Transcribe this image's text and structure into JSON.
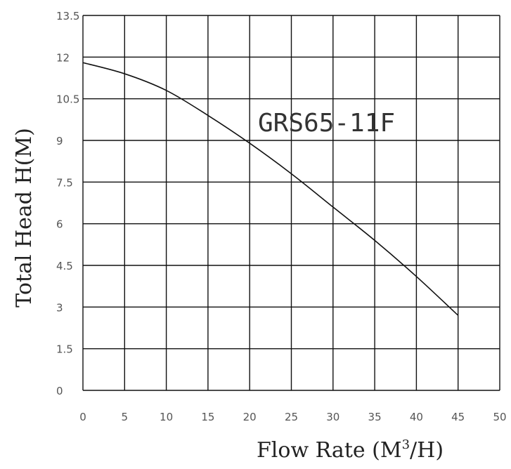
{
  "chart_data": {
    "type": "line",
    "xlabel": {
      "main": "Flow Rate (M",
      "sup": "3",
      "tail": "/H)"
    },
    "ylabel": "Total Head H(M)",
    "xlim": [
      0,
      50
    ],
    "ylim": [
      0,
      13.5
    ],
    "xticks": [
      "0",
      "5",
      "10",
      "15",
      "20",
      "25",
      "30",
      "35",
      "40",
      "45",
      "50"
    ],
    "yticks": [
      "0",
      "1.5",
      "3",
      "4.5",
      "6",
      "7.5",
      "9",
      "10.5",
      "12",
      "13.5"
    ],
    "grid": true,
    "series": [
      {
        "name": "GRS65-11F",
        "x": [
          0,
          5,
          10,
          15,
          20,
          25,
          30,
          35,
          40,
          45
        ],
        "y": [
          11.8,
          11.4,
          10.8,
          9.9,
          8.9,
          7.8,
          6.6,
          5.4,
          4.1,
          2.7
        ]
      }
    ]
  }
}
